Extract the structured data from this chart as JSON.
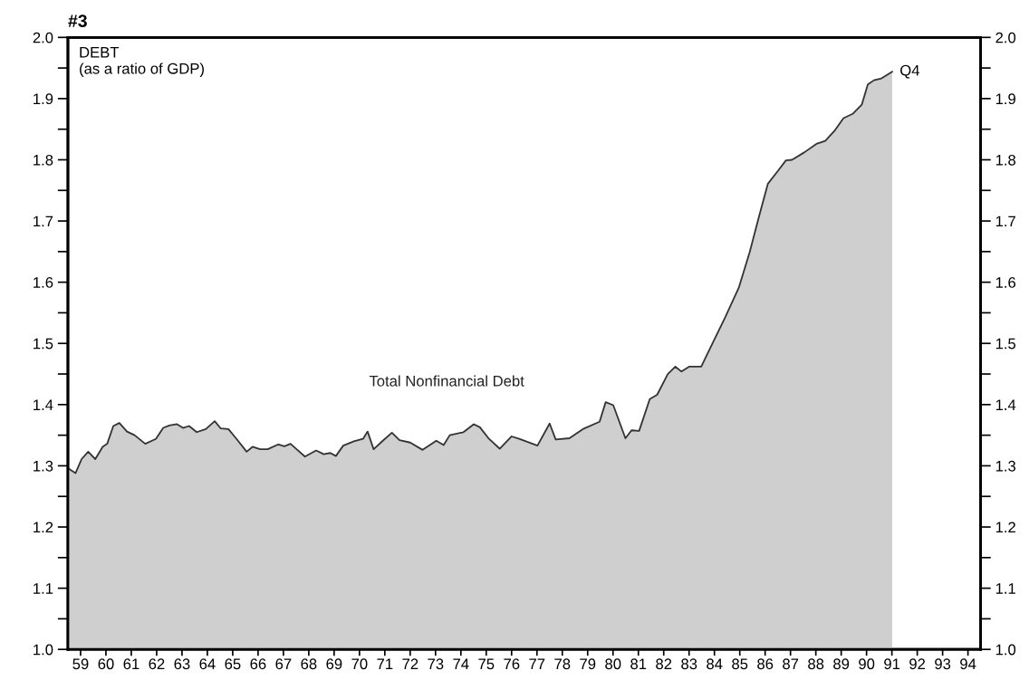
{
  "chart_data": {
    "type": "area",
    "title": "#3",
    "annotations": [
      "DEBT\n(as a ratio of GDP)",
      {
        "text": "Q4",
        "x": 91.51,
        "y": 1.944
      }
    ],
    "xlim": [
      59,
      95
    ],
    "xticks": [
      {
        "value": 59.5,
        "label": "59"
      },
      {
        "value": 60.5,
        "label": "60"
      },
      {
        "value": 61.5,
        "label": "61"
      },
      {
        "value": 62.5,
        "label": "62"
      },
      {
        "value": 63.5,
        "label": "63"
      },
      {
        "value": 64.5,
        "label": "64"
      },
      {
        "value": 65.5,
        "label": "65"
      },
      {
        "value": 66.5,
        "label": "66"
      },
      {
        "value": 67.5,
        "label": "67"
      },
      {
        "value": 68.5,
        "label": "68"
      },
      {
        "value": 69.5,
        "label": "69"
      },
      {
        "value": 70.5,
        "label": "70"
      },
      {
        "value": 71.5,
        "label": "71"
      },
      {
        "value": 72.5,
        "label": "72"
      },
      {
        "value": 73.5,
        "label": "73"
      },
      {
        "value": 74.5,
        "label": "74"
      },
      {
        "value": 75.5,
        "label": "75"
      },
      {
        "value": 76.5,
        "label": "76"
      },
      {
        "value": 77.5,
        "label": "77"
      },
      {
        "value": 78.5,
        "label": "78"
      },
      {
        "value": 79.5,
        "label": "79"
      },
      {
        "value": 80.5,
        "label": "80"
      },
      {
        "value": 81.5,
        "label": "81"
      },
      {
        "value": 82.5,
        "label": "82"
      },
      {
        "value": 83.5,
        "label": "83"
      },
      {
        "value": 84.5,
        "label": "84"
      },
      {
        "value": 85.5,
        "label": "85"
      },
      {
        "value": 86.5,
        "label": "86"
      },
      {
        "value": 87.5,
        "label": "87"
      },
      {
        "value": 88.5,
        "label": "88"
      },
      {
        "value": 89.5,
        "label": "89"
      },
      {
        "value": 90.5,
        "label": "90"
      },
      {
        "value": 91.5,
        "label": "91"
      },
      {
        "value": 92.5,
        "label": "92"
      },
      {
        "value": 93.5,
        "label": "93"
      },
      {
        "value": 94.5,
        "label": "94"
      }
    ],
    "ylim": [
      1.0,
      2.0
    ],
    "yticks": [
      {
        "value": 1.0,
        "label": "1.0"
      },
      {
        "value": 1.05,
        "label": null
      },
      {
        "value": 1.1,
        "label": "1.1"
      },
      {
        "value": 1.15,
        "label": null
      },
      {
        "value": 1.2,
        "label": "1.2"
      },
      {
        "value": 1.25,
        "label": null
      },
      {
        "value": 1.3,
        "label": "1.3"
      },
      {
        "value": 1.35,
        "label": null
      },
      {
        "value": 1.4,
        "label": "1.4"
      },
      {
        "value": 1.45,
        "label": null
      },
      {
        "value": 1.5,
        "label": "1.5"
      },
      {
        "value": 1.55,
        "label": null
      },
      {
        "value": 1.6,
        "label": "1.6"
      },
      {
        "value": 1.65,
        "label": null
      },
      {
        "value": 1.7,
        "label": "1.7"
      },
      {
        "value": 1.75,
        "label": null
      },
      {
        "value": 1.8,
        "label": "1.8"
      },
      {
        "value": 1.85,
        "label": null
      },
      {
        "value": 1.9,
        "label": "1.9"
      },
      {
        "value": 1.95,
        "label": null
      },
      {
        "value": 2.0,
        "label": "2.0"
      }
    ],
    "y2lim": [
      1.0,
      2.0
    ],
    "y2ticks": [
      {
        "value": 1.0,
        "label": "1.0"
      },
      {
        "value": 1.05,
        "label": null
      },
      {
        "value": 1.1,
        "label": "1.1"
      },
      {
        "value": 1.15,
        "label": null
      },
      {
        "value": 1.2,
        "label": "1.2"
      },
      {
        "value": 1.25,
        "label": null
      },
      {
        "value": 1.3,
        "label": "1.3"
      },
      {
        "value": 1.35,
        "label": null
      },
      {
        "value": 1.4,
        "label": "1.4"
      },
      {
        "value": 1.45,
        "label": null
      },
      {
        "value": 1.5,
        "label": "1.5"
      },
      {
        "value": 1.55,
        "label": null
      },
      {
        "value": 1.6,
        "label": "1.6"
      },
      {
        "value": 1.65,
        "label": null
      },
      {
        "value": 1.7,
        "label": "1.7"
      },
      {
        "value": 1.75,
        "label": null
      },
      {
        "value": 1.8,
        "label": "1.8"
      },
      {
        "value": 1.85,
        "label": null
      },
      {
        "value": 1.9,
        "label": "1.9"
      },
      {
        "value": 1.95,
        "label": null
      },
      {
        "value": 2.0,
        "label": "2.0"
      }
    ],
    "grid": false,
    "series": [
      {
        "name": "Total Nonfinancial Debt",
        "color": "#cfcfcf",
        "x": [
          59.04,
          59.3,
          59.54,
          59.8,
          60.08,
          60.37,
          60.55,
          60.79,
          61.03,
          61.33,
          61.63,
          62.05,
          62.47,
          62.76,
          63.0,
          63.3,
          63.54,
          63.78,
          64.08,
          64.44,
          64.79,
          65.03,
          65.33,
          65.63,
          66.05,
          66.28,
          66.58,
          66.88,
          67.3,
          67.54,
          67.78,
          68.02,
          68.35,
          68.79,
          69.09,
          69.35,
          69.57,
          69.86,
          70.28,
          70.64,
          70.82,
          71.06,
          71.42,
          71.78,
          72.08,
          72.5,
          72.99,
          73.53,
          73.82,
          74.06,
          74.6,
          75.01,
          75.25,
          75.61,
          76.03,
          76.5,
          76.8,
          77.52,
          78.0,
          78.24,
          78.78,
          79.31,
          79.97,
          80.21,
          80.51,
          80.99,
          81.23,
          81.53,
          81.95,
          82.24,
          82.66,
          82.96,
          83.2,
          83.5,
          83.98,
          84.46,
          84.93,
          85.47,
          85.89,
          86.25,
          86.61,
          86.97,
          87.32,
          87.56,
          88.04,
          88.52,
          88.87,
          89.23,
          89.59,
          89.95,
          90.31,
          90.55,
          90.79,
          91.09,
          91.51
        ],
        "values": [
          1.295,
          1.288,
          1.311,
          1.323,
          1.311,
          1.331,
          1.336,
          1.365,
          1.37,
          1.356,
          1.35,
          1.336,
          1.344,
          1.362,
          1.366,
          1.368,
          1.362,
          1.365,
          1.355,
          1.36,
          1.373,
          1.361,
          1.36,
          1.345,
          1.323,
          1.331,
          1.327,
          1.327,
          1.335,
          1.332,
          1.336,
          1.327,
          1.315,
          1.325,
          1.319,
          1.321,
          1.316,
          1.333,
          1.34,
          1.344,
          1.356,
          1.327,
          1.341,
          1.354,
          1.342,
          1.338,
          1.326,
          1.341,
          1.334,
          1.35,
          1.355,
          1.368,
          1.363,
          1.344,
          1.328,
          1.348,
          1.344,
          1.333,
          1.369,
          1.343,
          1.345,
          1.36,
          1.372,
          1.404,
          1.399,
          1.345,
          1.358,
          1.357,
          1.409,
          1.416,
          1.45,
          1.462,
          1.454,
          1.462,
          1.462,
          1.503,
          1.543,
          1.592,
          1.649,
          1.706,
          1.761,
          1.78,
          1.799,
          1.8,
          1.812,
          1.826,
          1.831,
          1.847,
          1.868,
          1.875,
          1.89,
          1.923,
          1.93,
          1.933,
          1.944
        ]
      }
    ]
  }
}
